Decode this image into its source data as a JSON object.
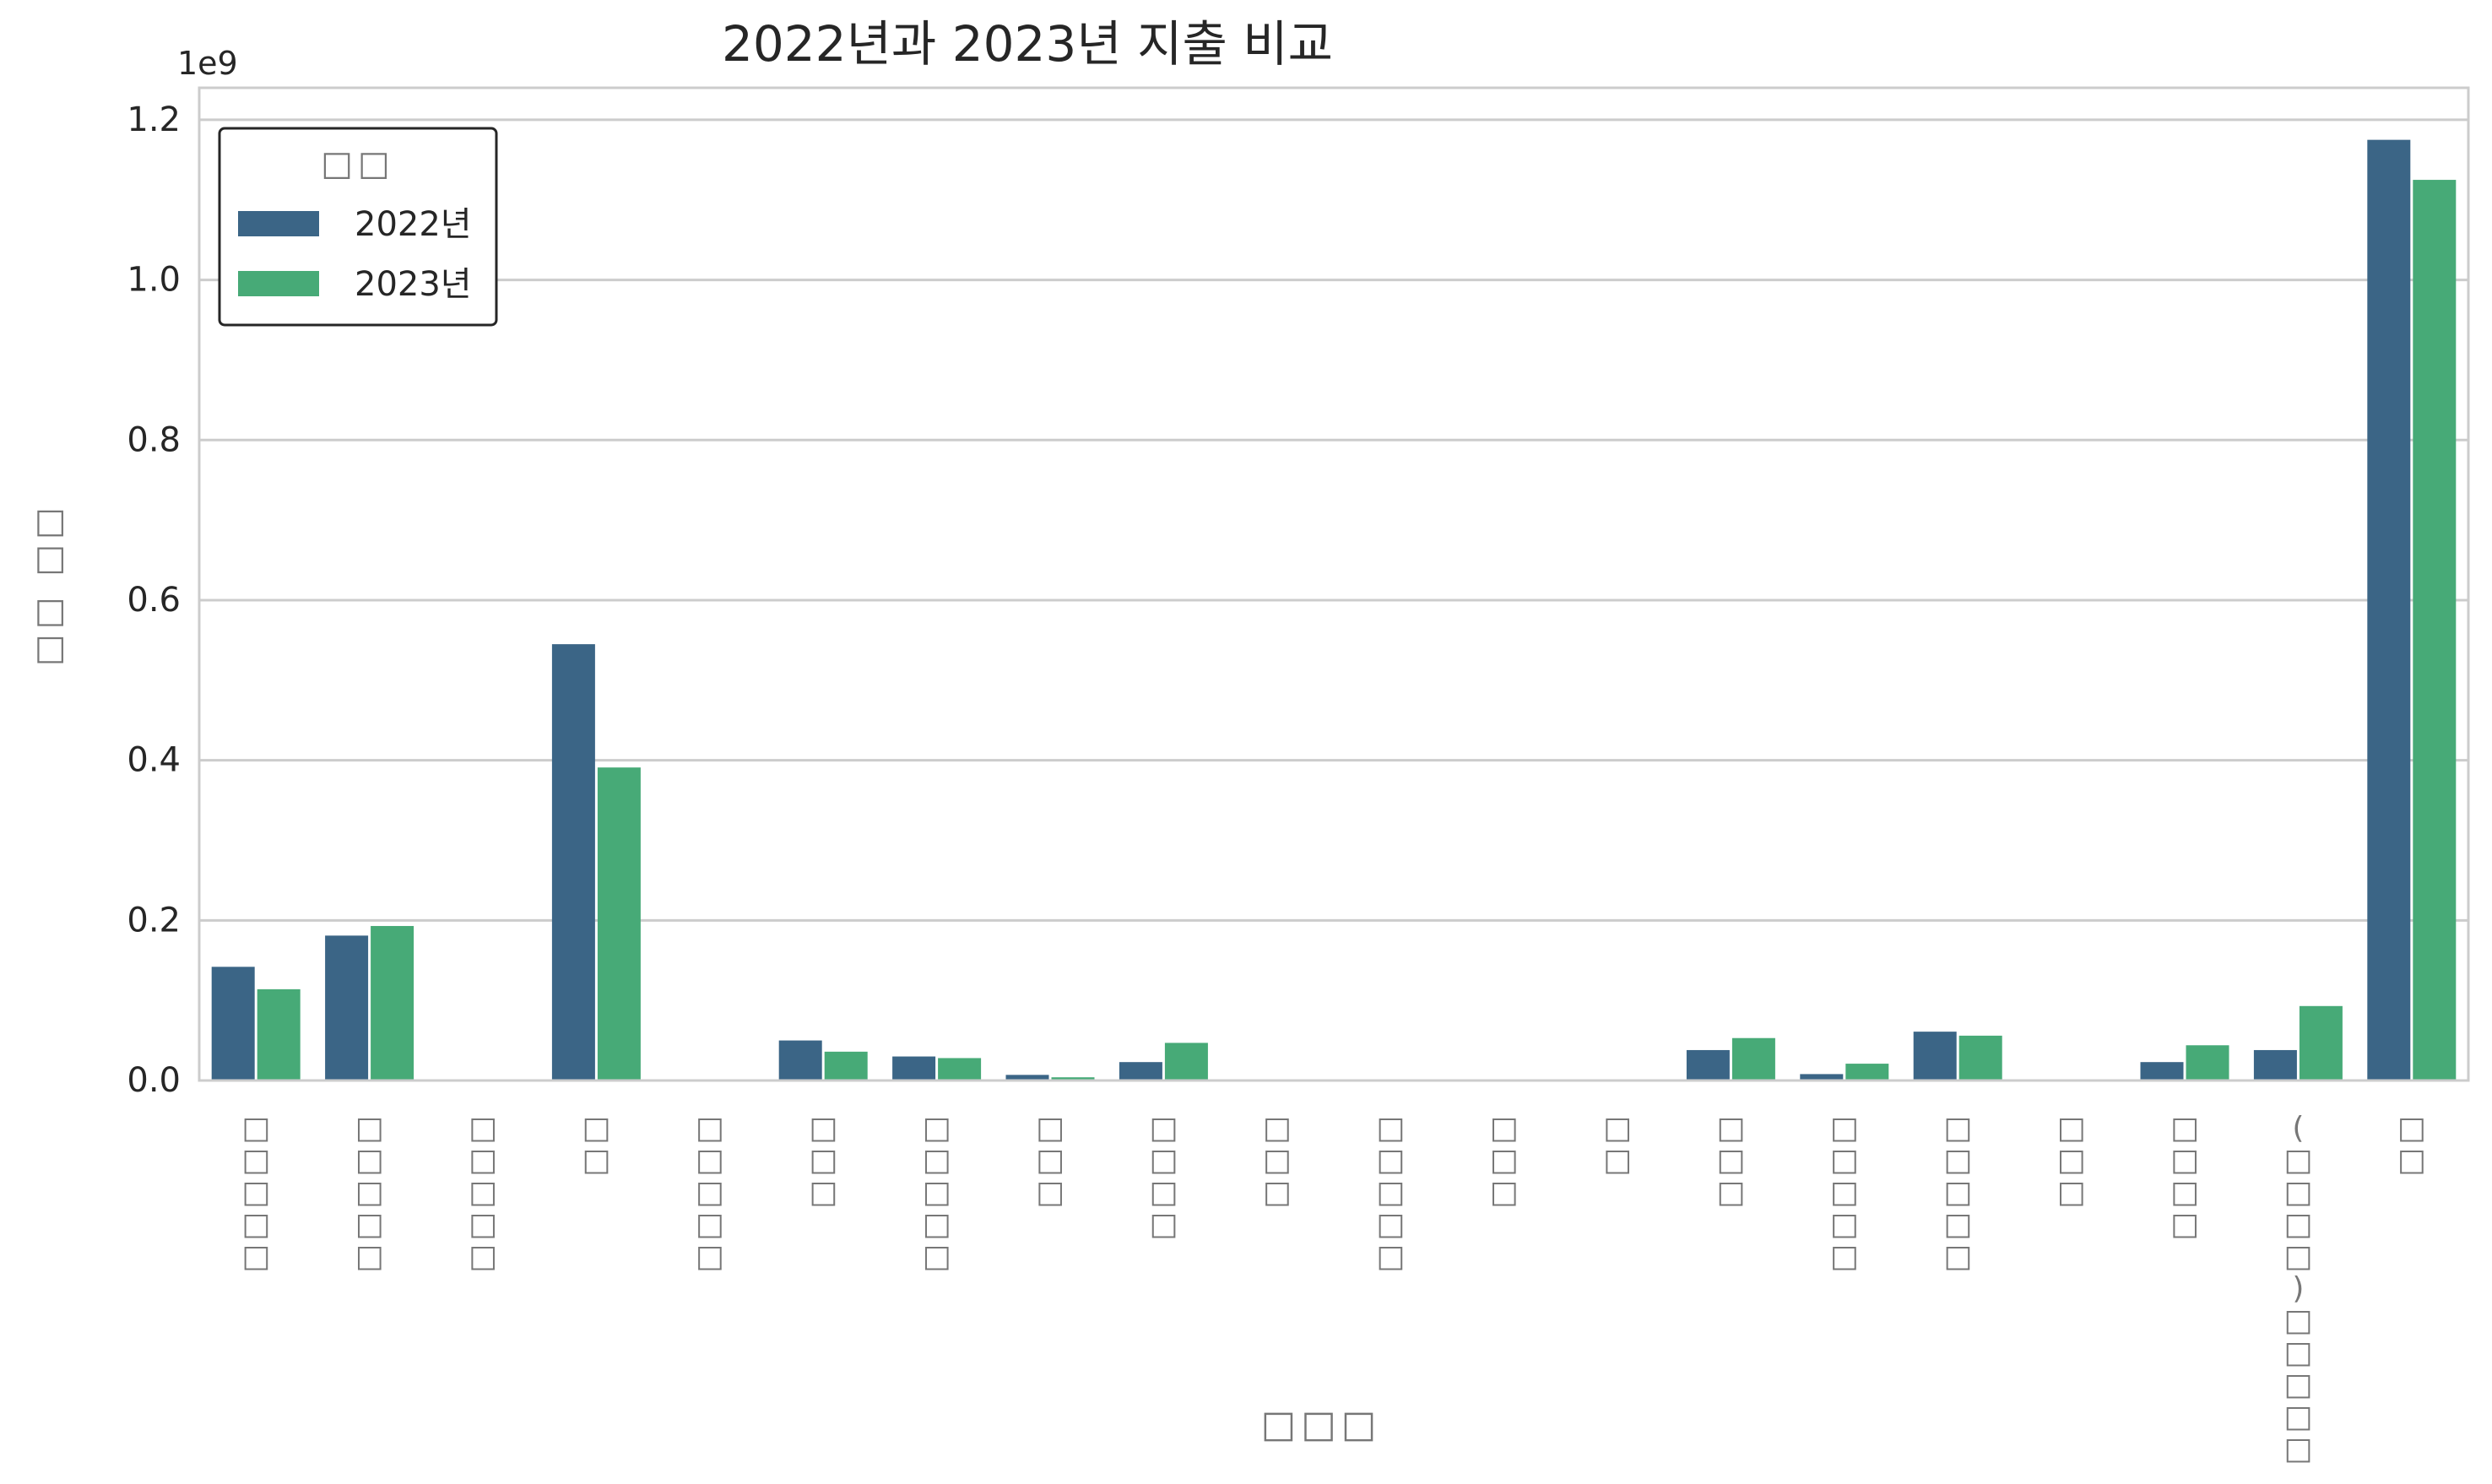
{
  "chart_data": {
    "type": "bar",
    "title": "2022년과 2023년 지출 비교",
    "xlabel": "□□□",
    "ylabel": "□□ □□",
    "offset_text": "1e9",
    "categories": [
      "□□□□□",
      "□□□□□",
      "□□□□□",
      "□□",
      "□□□□□",
      "□□□",
      "□□□□□",
      "□□□",
      "□□□□",
      "□□□",
      "□□□□□",
      "□□□",
      "□□",
      "□□□",
      "□□□□□",
      "□□□□□",
      "□□□",
      "□□□□",
      "(□□□□)□□□□□",
      "□□"
    ],
    "series": [
      {
        "name": "2022년",
        "color": "#3b6586",
        "values": [
          142000000,
          181000000,
          0,
          545000000,
          0,
          50000000,
          30000000,
          7000000,
          23000000,
          0,
          0,
          0,
          0,
          38000000,
          8000000,
          61000000,
          0,
          23000000,
          38000000,
          1175000000
        ]
      },
      {
        "name": "2023년",
        "color": "#47aa77",
        "values": [
          114000000,
          193000000,
          0,
          391000000,
          0,
          36000000,
          28000000,
          4000000,
          47000000,
          0,
          0,
          0,
          0,
          53000000,
          21000000,
          56000000,
          0,
          44000000,
          93000000,
          1125000000
        ]
      }
    ],
    "ylim": [
      0,
      1240000000
    ],
    "yticks": [
      "0.0",
      "0.2",
      "0.4",
      "0.6",
      "0.8",
      "1.0",
      "1.2"
    ],
    "grid": "horizontal",
    "legend": {
      "title": "□□",
      "placement": "top-left",
      "entries": [
        "2022년",
        "2023년"
      ]
    },
    "colors": {
      "grid": "#cccccc",
      "frame": "#cccccc",
      "text": "#262626",
      "missing_glyph": "#777777"
    }
  }
}
